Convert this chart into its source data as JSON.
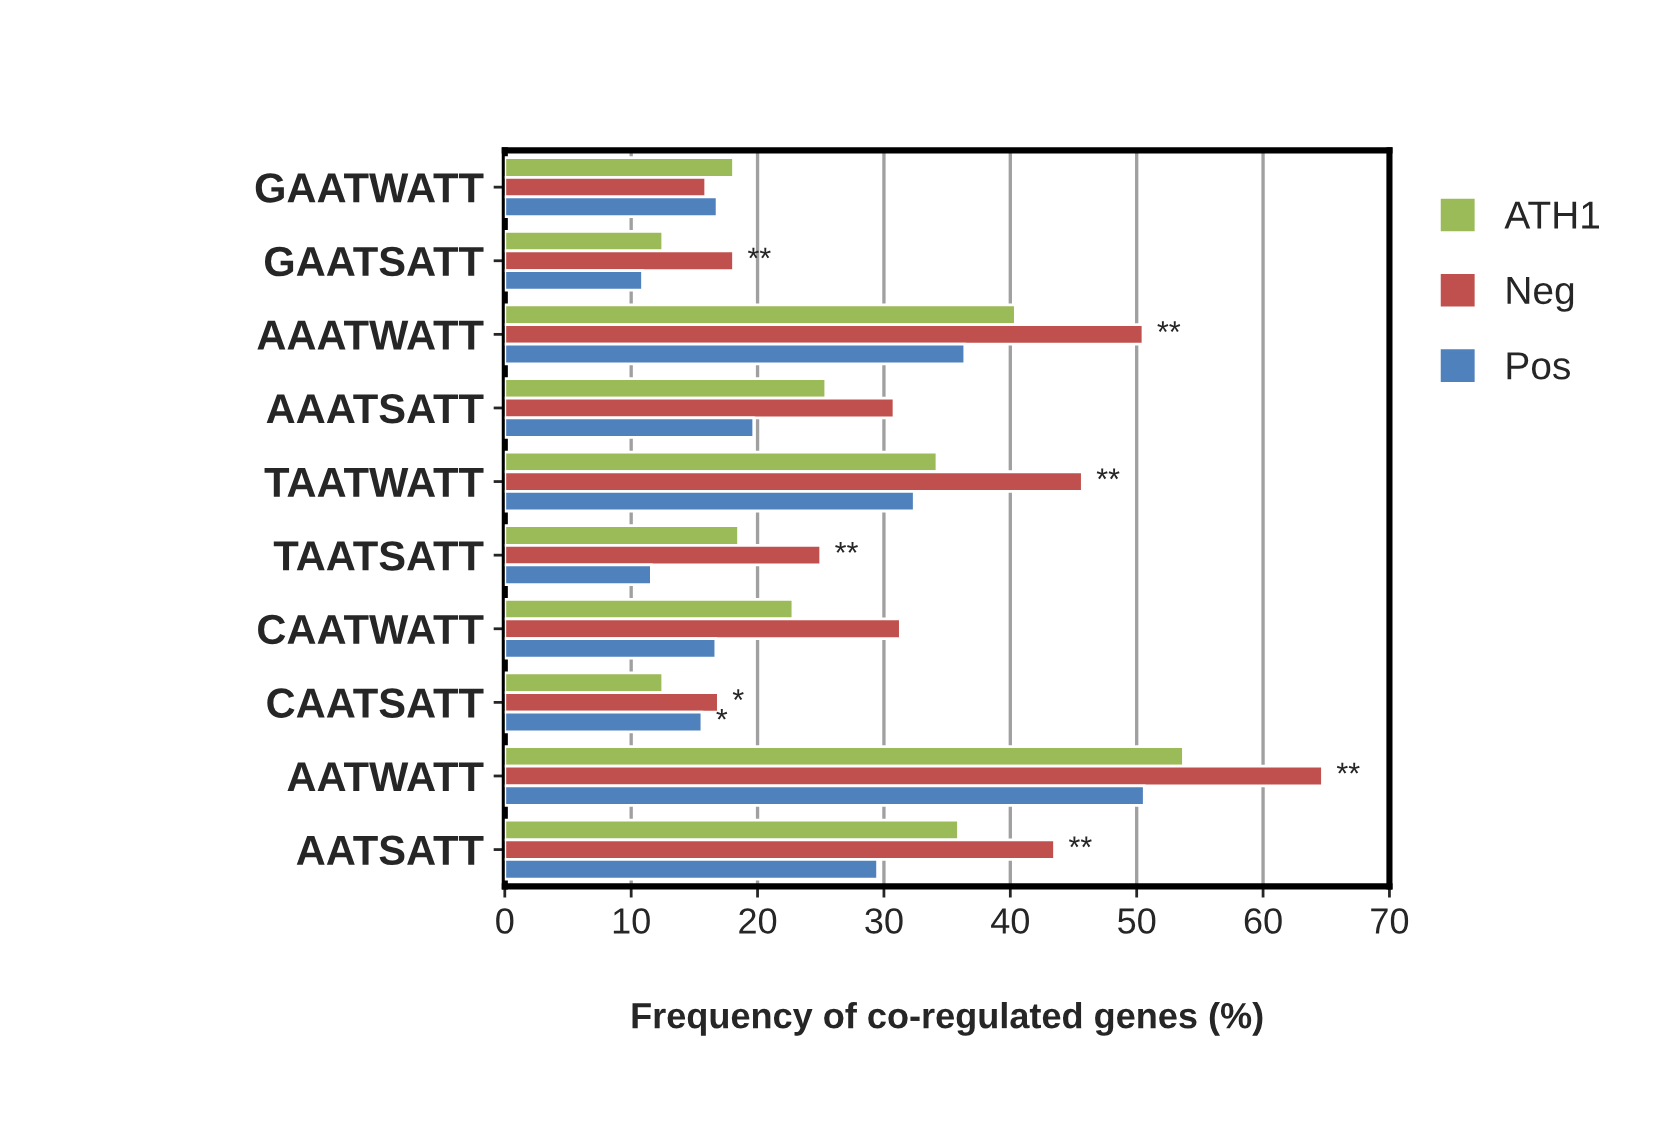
{
  "chart_data": {
    "type": "bar",
    "orientation": "horizontal",
    "xlabel": "Frequency of co-regulated genes (%)",
    "categories": [
      "GAATWATT",
      "GAATSATT",
      "AAATWATT",
      "AAATSATT",
      "TAATWATT",
      "TAATSATT",
      "CAATWATT",
      "CAATSATT",
      "AATWATT",
      "AATSATT"
    ],
    "series": [
      {
        "name": "ATH1",
        "color": "#9bbb59",
        "values": [
          18.1,
          12.5,
          40.4,
          25.4,
          34.2,
          18.5,
          22.8,
          12.5,
          53.7,
          35.9
        ]
      },
      {
        "name": "Neg",
        "color": "#c0504d",
        "values": [
          15.9,
          18.1,
          50.5,
          30.8,
          45.7,
          25.0,
          31.3,
          16.9,
          64.7,
          43.5
        ]
      },
      {
        "name": "Pos",
        "color": "#4f81bd",
        "values": [
          16.8,
          10.9,
          36.4,
          19.7,
          32.4,
          11.6,
          16.7,
          15.6,
          50.6,
          29.5
        ]
      }
    ],
    "xlim": [
      0,
      70
    ],
    "xticks": [
      0,
      10,
      20,
      30,
      40,
      50,
      60,
      70
    ],
    "grid": "x",
    "legend": "right",
    "annotations": [
      {
        "text": "**",
        "x": 18.1,
        "y": "GAATSATT"
      },
      {
        "text": "**",
        "x": 50.5,
        "y": "AAATWATT"
      },
      {
        "text": "**",
        "x": 45.7,
        "y": "TAATWATT"
      },
      {
        "text": "**",
        "x": 25.0,
        "y": "TAATSATT"
      },
      {
        "text": "*",
        "x": 16.9,
        "y": "CAATSATT"
      },
      {
        "text": "*",
        "x": 15.6,
        "y": "CAATSATT"
      },
      {
        "text": "**",
        "x": 64.7,
        "y": "AATWATT"
      },
      {
        "text": "**",
        "x": 43.5,
        "y": "AATSATT"
      }
    ]
  }
}
